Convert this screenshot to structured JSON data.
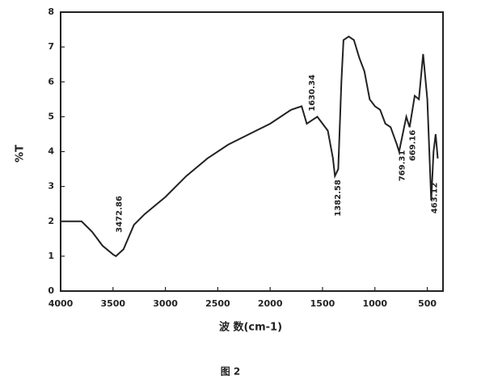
{
  "chart_data": {
    "type": "line",
    "xlabel": "波 数(cm-1)",
    "ylabel": "%T",
    "caption": "图 2",
    "x": [
      4000,
      3900,
      3800,
      3700,
      3600,
      3500,
      3472,
      3400,
      3300,
      3200,
      3000,
      2800,
      2600,
      2400,
      2200,
      2000,
      1800,
      1700,
      1650,
      1600,
      1550,
      1450,
      1400,
      1382,
      1350,
      1320,
      1300,
      1250,
      1200,
      1150,
      1100,
      1050,
      1000,
      950,
      900,
      850,
      790,
      769,
      700,
      669,
      620,
      580,
      540,
      500,
      463,
      440,
      420,
      400
    ],
    "values": [
      2.0,
      2.0,
      2.0,
      1.7,
      1.3,
      1.05,
      1.0,
      1.2,
      1.9,
      2.2,
      2.7,
      3.3,
      3.8,
      4.2,
      4.5,
      4.8,
      5.2,
      5.3,
      4.8,
      4.9,
      5.0,
      4.6,
      3.8,
      3.3,
      3.5,
      6.0,
      7.2,
      7.3,
      7.2,
      6.7,
      6.3,
      5.5,
      5.3,
      5.2,
      4.8,
      4.7,
      4.2,
      4.0,
      5.0,
      4.7,
      5.6,
      5.5,
      6.8,
      5.5,
      2.6,
      4.0,
      4.5,
      3.8
    ],
    "color": "#222222",
    "xlim": [
      4000,
      350
    ],
    "ylim": [
      0,
      8
    ],
    "xticks": [
      4000,
      3500,
      3000,
      2500,
      2000,
      1500,
      1000,
      500
    ],
    "yticks": [
      0,
      1,
      2,
      3,
      4,
      5,
      6,
      7,
      8
    ],
    "annotations": [
      "3472.86",
      "1630.34",
      "1382.58",
      "769.31",
      "669.16",
      "463.12"
    ]
  }
}
